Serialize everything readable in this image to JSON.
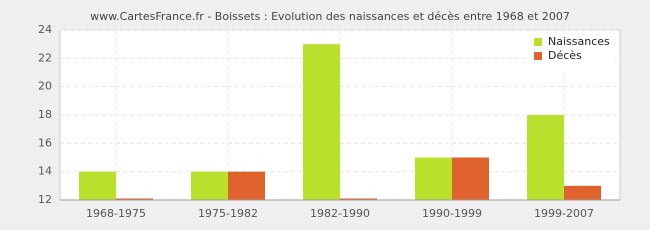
{
  "chart_data": {
    "type": "bar",
    "title": "www.CartesFrance.fr - Boissets : Evolution des naissances et décès entre 1968 et 2007",
    "categories": [
      "1968-1975",
      "1975-1982",
      "1982-1990",
      "1990-1999",
      "1999-2007"
    ],
    "series": [
      {
        "name": "Naissances",
        "color": "#b8e02c",
        "values": [
          14,
          14,
          23,
          15,
          18
        ]
      },
      {
        "name": "Décès",
        "color": "#e0622c",
        "values": [
          12,
          14,
          12,
          15,
          13
        ]
      }
    ],
    "ylim": [
      12,
      24
    ],
    "yticks": [
      12,
      14,
      16,
      18,
      20,
      22,
      24
    ],
    "grid": true,
    "legend": "top-right"
  }
}
